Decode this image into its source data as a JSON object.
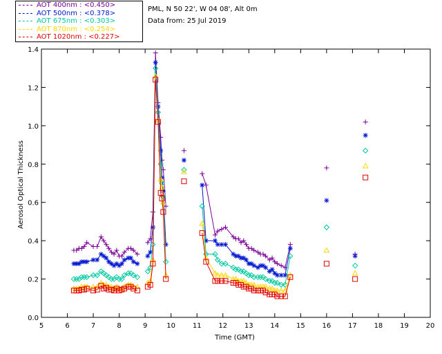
{
  "info": {
    "site": "PML, N 50 22', W 04 08', Alt 0m",
    "date": "Data from: 25 Jul 2019"
  },
  "chart_data": {
    "type": "scatter",
    "xlabel": "Time (GMT)",
    "ylabel": "Aerosol Optical Thickness",
    "xlim": [
      5,
      20
    ],
    "ylim": [
      0,
      1.4
    ],
    "xticks": [
      5,
      6,
      7,
      8,
      9,
      10,
      11,
      12,
      13,
      14,
      15,
      16,
      17,
      18,
      19,
      20
    ],
    "yticks": [
      "0.0",
      "0.2",
      "0.4",
      "0.6",
      "0.8",
      "1.0",
      "1.2",
      "1.4"
    ],
    "grid": false,
    "legend_placement": "top-left",
    "series": [
      {
        "name": "AOT  400nm : <0.450>",
        "color": "#7a0096",
        "marker": "plus",
        "x": [
          6.25,
          6.35,
          6.45,
          6.55,
          6.65,
          6.75,
          7.0,
          7.15,
          7.3,
          7.4,
          7.5,
          7.6,
          7.7,
          7.8,
          7.9,
          8.0,
          8.1,
          8.2,
          8.35,
          8.45,
          8.55,
          8.7,
          9.1,
          9.2,
          9.3,
          9.4,
          9.5,
          9.6,
          9.65,
          9.7,
          9.8,
          10.5,
          11.2,
          11.35,
          11.7,
          11.8,
          11.95,
          12.1,
          12.4,
          12.5,
          12.6,
          12.7,
          12.8,
          12.9,
          13.0,
          13.1,
          13.2,
          13.35,
          13.45,
          13.55,
          13.65,
          13.8,
          13.9,
          14.0,
          14.1,
          14.25,
          14.4,
          14.6,
          16.0,
          17.1,
          17.5
        ],
        "y": [
          0.35,
          0.35,
          0.36,
          0.36,
          0.37,
          0.39,
          0.37,
          0.37,
          0.42,
          0.4,
          0.38,
          0.36,
          0.34,
          0.33,
          0.35,
          0.32,
          0.32,
          0.34,
          0.36,
          0.36,
          0.35,
          0.33,
          0.39,
          0.41,
          0.55,
          1.38,
          1.12,
          0.94,
          0.82,
          0.77,
          0.58,
          0.87,
          0.75,
          0.69,
          0.43,
          0.45,
          0.46,
          0.47,
          0.42,
          0.41,
          0.41,
          0.39,
          0.4,
          0.38,
          0.36,
          0.36,
          0.35,
          0.34,
          0.33,
          0.33,
          0.32,
          0.3,
          0.31,
          0.29,
          0.28,
          0.27,
          0.26,
          0.38,
          0.78,
          0.33,
          1.02
        ]
      },
      {
        "name": "AOT  500nm : <0.378>",
        "color": "#0016d0",
        "marker": "asterisk",
        "x": [
          6.25,
          6.35,
          6.45,
          6.55,
          6.65,
          6.75,
          7.0,
          7.15,
          7.3,
          7.4,
          7.5,
          7.6,
          7.7,
          7.8,
          7.9,
          8.0,
          8.1,
          8.2,
          8.35,
          8.45,
          8.55,
          8.7,
          9.1,
          9.2,
          9.3,
          9.4,
          9.5,
          9.6,
          9.65,
          9.7,
          9.8,
          10.5,
          11.2,
          11.35,
          11.7,
          11.8,
          11.95,
          12.1,
          12.4,
          12.5,
          12.6,
          12.7,
          12.8,
          12.9,
          13.0,
          13.1,
          13.2,
          13.35,
          13.45,
          13.55,
          13.65,
          13.8,
          13.9,
          14.0,
          14.1,
          14.25,
          14.4,
          14.6,
          16.0,
          17.1,
          17.5
        ],
        "y": [
          0.28,
          0.28,
          0.28,
          0.29,
          0.29,
          0.29,
          0.3,
          0.3,
          0.33,
          0.32,
          0.31,
          0.29,
          0.28,
          0.27,
          0.28,
          0.27,
          0.28,
          0.3,
          0.31,
          0.31,
          0.29,
          0.28,
          0.32,
          0.34,
          0.47,
          1.33,
          1.1,
          0.87,
          0.73,
          0.66,
          0.38,
          0.82,
          0.69,
          0.4,
          0.4,
          0.38,
          0.38,
          0.38,
          0.33,
          0.32,
          0.32,
          0.31,
          0.31,
          0.3,
          0.28,
          0.28,
          0.27,
          0.26,
          0.27,
          0.27,
          0.26,
          0.24,
          0.25,
          0.23,
          0.22,
          0.22,
          0.22,
          0.36,
          0.61,
          0.32,
          0.95
        ]
      },
      {
        "name": "AOT  675nm : <0.303>",
        "color": "#00c8a0",
        "marker": "diamond",
        "x": [
          6.25,
          6.35,
          6.45,
          6.55,
          6.65,
          6.75,
          7.0,
          7.15,
          7.3,
          7.4,
          7.5,
          7.6,
          7.7,
          7.8,
          7.9,
          8.0,
          8.1,
          8.2,
          8.35,
          8.45,
          8.55,
          8.7,
          9.1,
          9.2,
          9.3,
          9.4,
          9.5,
          9.6,
          9.65,
          9.7,
          9.8,
          10.5,
          11.2,
          11.35,
          11.7,
          11.8,
          11.95,
          12.1,
          12.4,
          12.5,
          12.6,
          12.7,
          12.8,
          12.9,
          13.0,
          13.1,
          13.2,
          13.35,
          13.45,
          13.55,
          13.65,
          13.8,
          13.9,
          14.0,
          14.1,
          14.25,
          14.4,
          14.6,
          16.0,
          17.1,
          17.5
        ],
        "y": [
          0.2,
          0.2,
          0.2,
          0.21,
          0.21,
          0.21,
          0.22,
          0.22,
          0.24,
          0.23,
          0.22,
          0.21,
          0.2,
          0.2,
          0.21,
          0.2,
          0.2,
          0.22,
          0.23,
          0.23,
          0.22,
          0.21,
          0.24,
          0.26,
          0.38,
          1.3,
          1.07,
          0.8,
          0.7,
          0.63,
          0.29,
          0.77,
          0.58,
          0.33,
          0.33,
          0.3,
          0.28,
          0.28,
          0.26,
          0.25,
          0.25,
          0.24,
          0.24,
          0.23,
          0.22,
          0.22,
          0.21,
          0.21,
          0.21,
          0.21,
          0.2,
          0.19,
          0.19,
          0.18,
          0.18,
          0.17,
          0.17,
          0.32,
          0.47,
          0.27,
          0.87
        ]
      },
      {
        "name": "AOT  870nm : <0.254>",
        "color": "#ffd700",
        "marker": "triangle",
        "x": [
          6.25,
          6.35,
          6.45,
          6.55,
          6.65,
          6.75,
          7.0,
          7.15,
          7.3,
          7.4,
          7.5,
          7.6,
          7.7,
          7.8,
          7.9,
          8.0,
          8.1,
          8.2,
          8.35,
          8.45,
          8.55,
          8.7,
          9.1,
          9.2,
          9.3,
          9.4,
          9.5,
          9.6,
          9.65,
          9.7,
          9.8,
          10.5,
          11.2,
          11.35,
          11.7,
          11.8,
          11.95,
          12.1,
          12.4,
          12.5,
          12.6,
          12.7,
          12.8,
          12.9,
          13.0,
          13.1,
          13.2,
          13.35,
          13.45,
          13.55,
          13.65,
          13.8,
          13.9,
          14.0,
          14.1,
          14.25,
          14.4,
          14.6,
          16.0,
          17.1,
          17.5
        ],
        "y": [
          0.15,
          0.15,
          0.15,
          0.16,
          0.16,
          0.16,
          0.16,
          0.16,
          0.18,
          0.17,
          0.17,
          0.16,
          0.16,
          0.15,
          0.16,
          0.15,
          0.15,
          0.16,
          0.17,
          0.17,
          0.16,
          0.16,
          0.18,
          0.19,
          0.3,
          1.26,
          1.03,
          0.72,
          0.68,
          0.6,
          0.22,
          0.76,
          0.49,
          0.31,
          0.23,
          0.22,
          0.22,
          0.22,
          0.2,
          0.2,
          0.19,
          0.19,
          0.19,
          0.18,
          0.17,
          0.17,
          0.17,
          0.16,
          0.16,
          0.16,
          0.16,
          0.15,
          0.15,
          0.14,
          0.14,
          0.14,
          0.14,
          0.22,
          0.35,
          0.23,
          0.79
        ]
      },
      {
        "name": "AOT 1020nm : <0.227>",
        "color": "#e00000",
        "marker": "square",
        "x": [
          6.25,
          6.35,
          6.45,
          6.55,
          6.65,
          6.75,
          7.0,
          7.15,
          7.3,
          7.4,
          7.5,
          7.6,
          7.7,
          7.8,
          7.9,
          8.0,
          8.1,
          8.2,
          8.35,
          8.45,
          8.55,
          8.7,
          9.1,
          9.2,
          9.3,
          9.4,
          9.5,
          9.6,
          9.65,
          9.7,
          9.8,
          10.5,
          11.2,
          11.35,
          11.7,
          11.8,
          11.95,
          12.1,
          12.4,
          12.5,
          12.6,
          12.7,
          12.8,
          12.9,
          13.0,
          13.1,
          13.2,
          13.35,
          13.45,
          13.55,
          13.65,
          13.8,
          13.9,
          14.0,
          14.1,
          14.25,
          14.4,
          14.6,
          16.0,
          17.1,
          17.5
        ],
        "y": [
          0.14,
          0.14,
          0.14,
          0.145,
          0.145,
          0.15,
          0.14,
          0.145,
          0.165,
          0.15,
          0.155,
          0.145,
          0.145,
          0.14,
          0.15,
          0.14,
          0.145,
          0.15,
          0.16,
          0.16,
          0.15,
          0.14,
          0.16,
          0.17,
          0.28,
          1.24,
          1.02,
          0.65,
          0.62,
          0.55,
          0.2,
          0.71,
          0.44,
          0.29,
          0.19,
          0.19,
          0.19,
          0.19,
          0.18,
          0.18,
          0.17,
          0.17,
          0.16,
          0.16,
          0.15,
          0.15,
          0.14,
          0.14,
          0.14,
          0.14,
          0.13,
          0.12,
          0.12,
          0.12,
          0.11,
          0.11,
          0.11,
          0.21,
          0.28,
          0.2,
          0.73
        ]
      }
    ]
  }
}
